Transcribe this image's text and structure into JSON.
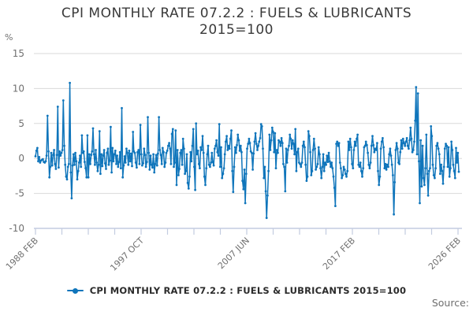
{
  "title": {
    "line1": "CPI MONTHLY RATE 07.2.2 : FUELS & LUBRICANTS",
    "line2": "2015=100"
  },
  "y_axis": {
    "unit_label": "%",
    "tick_labels": [
      "15",
      "10",
      "5",
      "0",
      "-5",
      "-10"
    ],
    "tick_values": [
      15,
      10,
      5,
      0,
      -5,
      -10
    ],
    "min": -10,
    "max": 15
  },
  "x_axis": {
    "tick_count": 17,
    "labeled_ticks": [
      {
        "tick_index": 0,
        "label": "1988 FEB"
      },
      {
        "tick_index": 4,
        "label": "1997 OCT"
      },
      {
        "tick_index": 8,
        "label": "2007 JUN"
      },
      {
        "tick_index": 12,
        "label": "2017 FEB"
      },
      {
        "tick_index": 16,
        "label": "2026 FEB"
      }
    ]
  },
  "legend": {
    "label": "CPI MONTHLY RATE 07.2.2 : FUELS & LUBRICANTS 2015=100"
  },
  "footer": {
    "source_label": "Source:"
  },
  "colors": {
    "series": "#0F75BB",
    "grid": "#D9D9D9",
    "axis": "#C3CCE0",
    "title_text": "#3A3A3A",
    "tick_text": "#707070",
    "legend_text": "#2B2B2B",
    "source_text": "#6E6E6E"
  },
  "chart_data": {
    "type": "line",
    "title": "CPI MONTHLY RATE 07.2.2 : FUELS & LUBRICANTS 2015=100",
    "xlabel": "",
    "ylabel": "%",
    "ylim": [
      -10,
      15
    ],
    "x_start": "1988 FEB",
    "x_end": "2026 FEB",
    "frequency": "monthly",
    "grid": "horizontal",
    "legend_position": "bottom",
    "marker": "circle",
    "x_tick_labels": [
      "1988 FEB",
      "1997 OCT",
      "2007 JUN",
      "2017 FEB",
      "2026 FEB"
    ],
    "series": [
      {
        "name": "CPI MONTHLY RATE 07.2.2 : FUELS & LUBRICANTS 2015=100",
        "color": "#0F75BB",
        "values": [
          0.3,
          1.1,
          1.5,
          -0.4,
          0.2,
          -0.6,
          -0.3,
          -0.2,
          -0.1,
          -0.5,
          -0.6,
          -0.4,
          0.4,
          6.1,
          1.0,
          -2.7,
          -1.2,
          0.8,
          -1.0,
          0.5,
          1.2,
          -0.8,
          -1.5,
          0.5,
          7.4,
          -1.3,
          1.0,
          0.4,
          0.8,
          1.2,
          8.3,
          1.8,
          -0.9,
          -2.6,
          -3.0,
          -1.2,
          -0.8,
          10.8,
          -2.0,
          -5.7,
          -1.0,
          0.6,
          -0.9,
          0.8,
          -0.4,
          -3.0,
          -1.8,
          -0.6,
          0.4,
          -1.2,
          3.3,
          0.8,
          1.0,
          -0.5,
          -1.4,
          -2.7,
          3.3,
          -2.7,
          0.6,
          -0.8,
          0.5,
          1.0,
          4.3,
          0.6,
          -0.9,
          1.2,
          -0.6,
          -1.8,
          -0.9,
          3.9,
          -2.2,
          0.6,
          -1.1,
          0.4,
          1.2,
          -0.7,
          -1.5,
          0.8,
          1.4,
          -0.9,
          -0.3,
          4.5,
          -2.0,
          1.5,
          -0.4,
          0.6,
          1.1,
          -0.8,
          0.4,
          -1.2,
          -0.5,
          0.9,
          -1.4,
          7.2,
          -2.7,
          -1.0,
          0.3,
          -0.6,
          1.4,
          0.8,
          -0.9,
          1.1,
          -0.4,
          0.7,
          -1.1,
          3.8,
          1.0,
          0.8,
          -0.6,
          -1.3,
          0.9,
          1.2,
          -0.8,
          4.8,
          0.6,
          -1.0,
          -0.7,
          1.4,
          0.5,
          -1.2,
          -0.5,
          5.9,
          0.8,
          -1.6,
          0.4,
          -0.9,
          -1.3,
          0.6,
          -2.0,
          -0.8,
          0.5,
          -1.0,
          0.7,
          5.9,
          1.2,
          0.5,
          -0.8,
          1.5,
          0.9,
          -1.2,
          -0.6,
          0.8,
          1.1,
          1.8,
          2.2,
          1.4,
          -0.8,
          3.5,
          4.2,
          -1.2,
          -0.6,
          4.0,
          -3.8,
          1.2,
          -2.4,
          -1.5,
          0.8,
          1.2,
          -0.9,
          2.8,
          1.4,
          -2.2,
          -1.8,
          0.6,
          -3.5,
          -4.3,
          -2.6,
          0.9,
          -0.4,
          1.8,
          4.2,
          -1.2,
          -4.5,
          5.0,
          0.6,
          1.1,
          -0.8,
          -1.4,
          1.6,
          1.2,
          3.2,
          0.8,
          -2.6,
          -3.8,
          -1.4,
          0.6,
          1.8,
          -0.9,
          -1.2,
          -0.6,
          0.8,
          -0.5,
          -1.0,
          1.4,
          1.8,
          2.6,
          0.9,
          0.4,
          4.9,
          -1.2,
          1.6,
          -2.8,
          -2.2,
          -1.4,
          0.6,
          2.4,
          3.2,
          1.2,
          1.8,
          1.4,
          2.8,
          4.0,
          -1.8,
          -4.8,
          -1.2,
          1.6,
          0.8,
          1.9,
          3.4,
          2.6,
          1.1,
          1.8,
          0.9,
          -3.2,
          -4.4,
          -1.6,
          -6.4,
          -2.2,
          1.4,
          2.1,
          2.8,
          2.2,
          1.0,
          0.8,
          -1.6,
          0.7,
          2.4,
          3.6,
          2.1,
          1.2,
          1.8,
          2.4,
          2.9,
          4.9,
          4.6,
          1.4,
          -2.8,
          -1.2,
          -4.7,
          -8.5,
          -5.3,
          -1.8,
          3.4,
          1.2,
          2.6,
          4.4,
          3.8,
          0.9,
          3.6,
          -1.4,
          1.2,
          0.8,
          2.6,
          2.4,
          1.8,
          2.9,
          2.2,
          -0.8,
          -1.2,
          -4.7,
          1.4,
          -0.6,
          1.2,
          1.8,
          3.4,
          2.8,
          1.4,
          2.6,
          2.1,
          0.6,
          4.2,
          -1.8,
          0.9,
          1.4,
          -0.6,
          -0.8,
          -1.2,
          -0.6,
          1.8,
          2.4,
          1.6,
          -0.9,
          -3.2,
          -2.6,
          3.9,
          3.2,
          0.9,
          -2.4,
          -1.8,
          1.2,
          2.8,
          1.4,
          -1.6,
          -1.2,
          -0.8,
          1.6,
          0.6,
          -1.4,
          -2.8,
          -1.2,
          0.6,
          -1.8,
          -0.6,
          -0.9,
          0.4,
          -0.5,
          0.8,
          -0.4,
          -1.2,
          -0.6,
          -1.4,
          -2.6,
          -4.2,
          -6.8,
          2.1,
          2.4,
          1.8,
          2.2,
          -0.6,
          -1.4,
          -2.8,
          -2.4,
          -1.2,
          -1.6,
          -2.2,
          -2.6,
          -1.8,
          2.4,
          1.2,
          2.8,
          1.6,
          -0.8,
          -1.4,
          1.2,
          2.4,
          1.8,
          2.8,
          3.4,
          -0.9,
          -1.2,
          -0.6,
          -1.8,
          -2.6,
          -1.4,
          1.6,
          1.8,
          2.4,
          1.9,
          0.8,
          -0.9,
          -1.4,
          -0.6,
          1.8,
          3.2,
          1.9,
          0.9,
          1.4,
          1.2,
          2.2,
          -1.8,
          -3.8,
          -2.6,
          1.4,
          2.4,
          2.9,
          1.6,
          -1.4,
          -0.8,
          -1.6,
          -0.9,
          -1.2,
          0.6,
          1.4,
          0.4,
          -0.9,
          -2.4,
          -8.0,
          -3.4,
          1.2,
          2.2,
          1.4,
          -0.6,
          -0.8,
          0.9,
          2.6,
          1.4,
          2.8,
          2.2,
          1.8,
          2.4,
          2.9,
          1.8,
          1.4,
          2.6,
          4.4,
          2.8,
          0.9,
          1.2,
          2.4,
          5.4,
          10.2,
          0.6,
          9.3,
          -0.4,
          -6.4,
          2.6,
          -4.0,
          1.8,
          -2.8,
          -3.8,
          -1.4,
          3.4,
          -2.2,
          -5.3,
          -1.8,
          -1.4,
          4.6,
          3.2,
          -0.9,
          -2.4,
          -2.8,
          -1.4,
          1.8,
          2.2,
          1.4,
          0.6,
          -2.2,
          -0.9,
          -1.8,
          -3.6,
          -1.2,
          1.4,
          2.1,
          1.8,
          -1.2,
          1.6,
          -2.6,
          -1.4,
          2.4,
          1.2,
          -0.9,
          -1.8,
          -2.8,
          1.5,
          -0.6,
          0.8,
          -1.9
        ]
      }
    ]
  }
}
